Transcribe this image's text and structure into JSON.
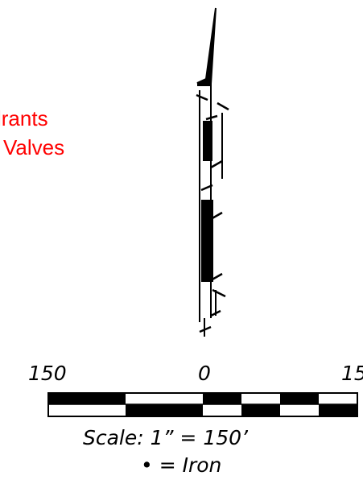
{
  "legend": {
    "hydrants_label": "lrants",
    "valves_label": "Valves",
    "color": "#ff0000"
  },
  "scale_bar": {
    "tick_left": "150",
    "tick_middle": "0",
    "tick_right": "15",
    "caption": "Scale:  1”  =  150’"
  },
  "symbol_note": {
    "bullet": "•",
    "text": "=  Iron"
  }
}
